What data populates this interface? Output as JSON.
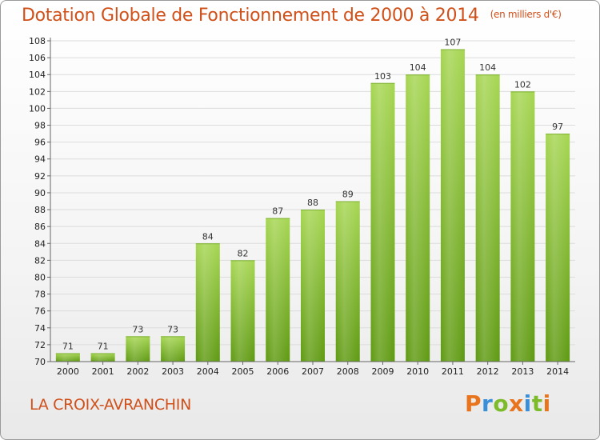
{
  "header": {
    "title": "Dotation Globale de Fonctionnement de 2000 à 2014",
    "unit": "(en milliers d'€)"
  },
  "footer": {
    "commune": "LA CROIX-AVRANCHIN",
    "logo_text": "Proxiti",
    "logo_colors": [
      "#e8741e",
      "#3b8fd9",
      "#7dbb2a",
      "#e8741e",
      "#3b8fd9",
      "#7dbb2a",
      "#e8741e"
    ]
  },
  "colors": {
    "bar_top": "#a6d652",
    "bar_bottom": "#5f9a12",
    "title": "#d0501a"
  },
  "chart_data": {
    "type": "bar",
    "title": "Dotation Globale de Fonctionnement de 2000 à 2014",
    "xlabel": "",
    "ylabel": "",
    "categories": [
      "2000",
      "2001",
      "2002",
      "2003",
      "2004",
      "2005",
      "2006",
      "2007",
      "2008",
      "2009",
      "2010",
      "2011",
      "2012",
      "2013",
      "2014"
    ],
    "values": [
      71,
      71,
      73,
      73,
      84,
      82,
      87,
      88,
      89,
      103,
      104,
      107,
      104,
      102,
      97
    ],
    "ylim": [
      70,
      108
    ],
    "yticks": [
      70,
      72,
      74,
      76,
      78,
      80,
      82,
      84,
      86,
      88,
      90,
      92,
      94,
      96,
      98,
      100,
      102,
      104,
      106,
      108
    ],
    "grid": true,
    "legend": "none"
  }
}
